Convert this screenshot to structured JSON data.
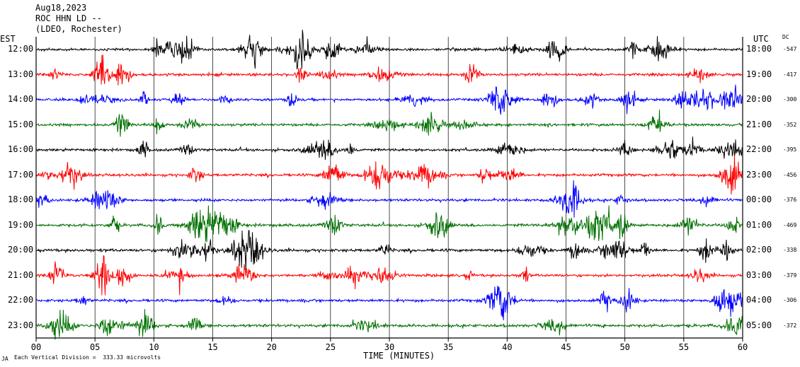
{
  "header": {
    "date": "Aug18,2023",
    "station": "ROC HHN LD --",
    "network": "(LDEO, Rochester)"
  },
  "labels": {
    "left_tz": "EST",
    "right_tz": "UTC",
    "dc_header": "DC",
    "xlabel": "TIME (MINUTES)",
    "footer": "Each Vertical Division =  333.33 microvolts",
    "footer_mark": "JA"
  },
  "colors": {
    "cycle": [
      "#000000",
      "#ff0000",
      "#0000ff",
      "#007000"
    ],
    "grid": "#000000",
    "background": "#ffffff"
  },
  "chart_data": {
    "type": "line",
    "title": "",
    "xlabel": "TIME (MINUTES)",
    "xlim": [
      0,
      60
    ],
    "xticks": [
      "00",
      "05",
      "10",
      "15",
      "20",
      "25",
      "30",
      "35",
      "40",
      "45",
      "50",
      "55",
      "60"
    ],
    "grid": "vertical lines every 5 minutes",
    "rows": [
      {
        "est": "12:00",
        "utc": "18:00",
        "dc": "-547",
        "color": "#000000",
        "amplitude": 0.55
      },
      {
        "est": "13:00",
        "utc": "19:00",
        "dc": "-417",
        "color": "#ff0000",
        "amplitude": 0.6
      },
      {
        "est": "14:00",
        "utc": "20:00",
        "dc": "-300",
        "color": "#0000ff",
        "amplitude": 0.55
      },
      {
        "est": "15:00",
        "utc": "21:00",
        "dc": "-352",
        "color": "#007000",
        "amplitude": 0.6
      },
      {
        "est": "16:00",
        "utc": "22:00",
        "dc": "-395",
        "color": "#000000",
        "amplitude": 0.6
      },
      {
        "est": "17:00",
        "utc": "23:00",
        "dc": "-456",
        "color": "#ff0000",
        "amplitude": 0.6
      },
      {
        "est": "18:00",
        "utc": "00:00",
        "dc": "-376",
        "color": "#0000ff",
        "amplitude": 0.6
      },
      {
        "est": "19:00",
        "utc": "01:00",
        "dc": "-469",
        "color": "#007000",
        "amplitude": 0.65
      },
      {
        "est": "20:00",
        "utc": "02:00",
        "dc": "-338",
        "color": "#000000",
        "amplitude": 0.65
      },
      {
        "est": "21:00",
        "utc": "03:00",
        "dc": "-379",
        "color": "#ff0000",
        "amplitude": 0.6
      },
      {
        "est": "22:00",
        "utc": "04:00",
        "dc": "-306",
        "color": "#0000ff",
        "amplitude": 0.6
      },
      {
        "est": "23:00",
        "utc": "05:00",
        "dc": "-372",
        "color": "#007000",
        "amplitude": 0.65
      }
    ]
  }
}
